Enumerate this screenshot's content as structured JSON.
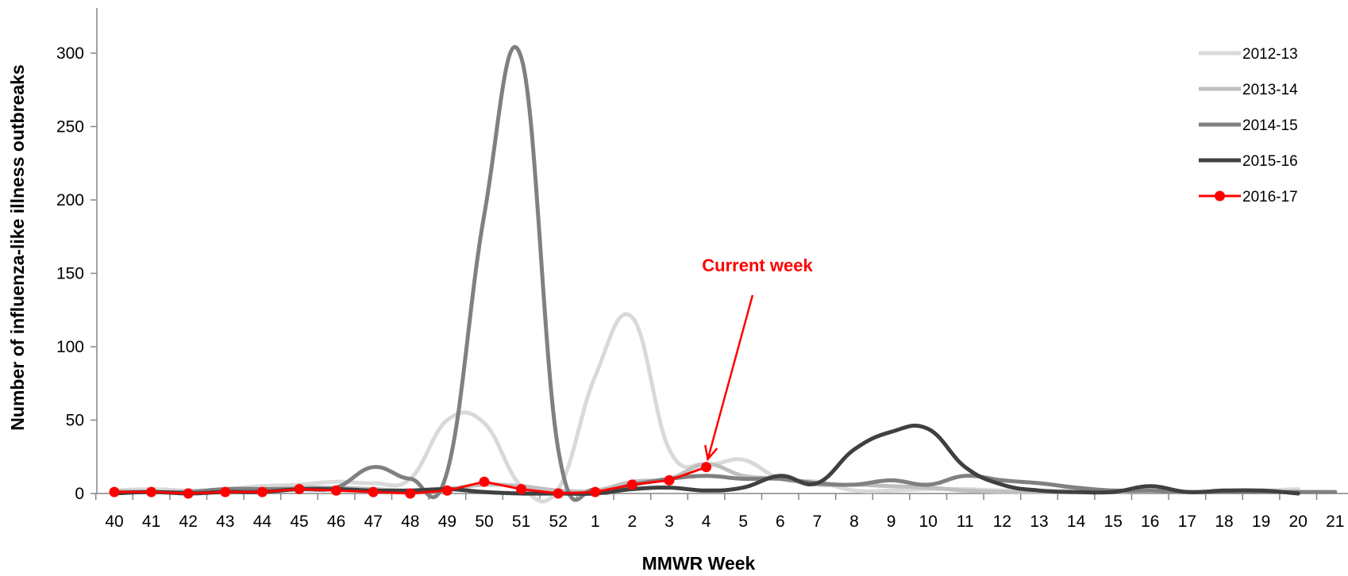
{
  "chart_data": {
    "type": "line",
    "xlabel": "MMWR Week",
    "ylabel": "Number of influenza-like illness outbreaks",
    "ylim": [
      0,
      300
    ],
    "yticks": [
      0,
      50,
      100,
      150,
      200,
      250,
      300
    ],
    "categories": [
      "40",
      "41",
      "42",
      "43",
      "44",
      "45",
      "46",
      "47",
      "48",
      "49",
      "50",
      "51",
      "52",
      "1",
      "2",
      "3",
      "4",
      "5",
      "6",
      "7",
      "8",
      "9",
      "10",
      "11",
      "12",
      "13",
      "14",
      "15",
      "16",
      "17",
      "18",
      "19",
      "20",
      "21"
    ],
    "grid": false,
    "legend_position": "top-right",
    "series": [
      {
        "name": "2012-13",
        "color": "#d9d9d9",
        "marker": false,
        "values": [
          2,
          3,
          2,
          3,
          5,
          6,
          8,
          7,
          10,
          50,
          48,
          5,
          3,
          80,
          120,
          30,
          20,
          23,
          10,
          8,
          2,
          2,
          3,
          3,
          2,
          2,
          2,
          2,
          2,
          1,
          2,
          2,
          3,
          null
        ]
      },
      {
        "name": "2013-14",
        "color": "#bfbfbf",
        "marker": false,
        "values": [
          1,
          1,
          1,
          2,
          3,
          4,
          4,
          3,
          2,
          3,
          6,
          5,
          2,
          2,
          8,
          10,
          20,
          12,
          10,
          6,
          6,
          5,
          4,
          2,
          1,
          1,
          1,
          1,
          2,
          1,
          1,
          1,
          1,
          null
        ]
      },
      {
        "name": "2014-15",
        "color": "#808080",
        "marker": false,
        "values": [
          1,
          1,
          1,
          3,
          3,
          3,
          4,
          18,
          10,
          15,
          190,
          297,
          30,
          2,
          6,
          10,
          12,
          10,
          10,
          7,
          6,
          9,
          6,
          12,
          9,
          7,
          4,
          2,
          2,
          1,
          1,
          1,
          1,
          1
        ]
      },
      {
        "name": "2015-16",
        "color": "#404040",
        "marker": false,
        "values": [
          0,
          1,
          0,
          1,
          1,
          3,
          3,
          2,
          2,
          3,
          1,
          0,
          0,
          0,
          3,
          4,
          2,
          4,
          12,
          7,
          30,
          42,
          44,
          18,
          6,
          2,
          1,
          1,
          5,
          1,
          2,
          2,
          0,
          null
        ]
      },
      {
        "name": "2016-17",
        "color": "#ff0000",
        "marker": true,
        "values": [
          1,
          1,
          0,
          1,
          1,
          3,
          2,
          1,
          0,
          2,
          8,
          3,
          0,
          1,
          6,
          9,
          18,
          null,
          null,
          null,
          null,
          null,
          null,
          null,
          null,
          null,
          null,
          null,
          null,
          null,
          null,
          null,
          null,
          null
        ]
      }
    ],
    "annotation": {
      "text": "Current week",
      "color": "#ff0000",
      "target_category": "4"
    }
  }
}
